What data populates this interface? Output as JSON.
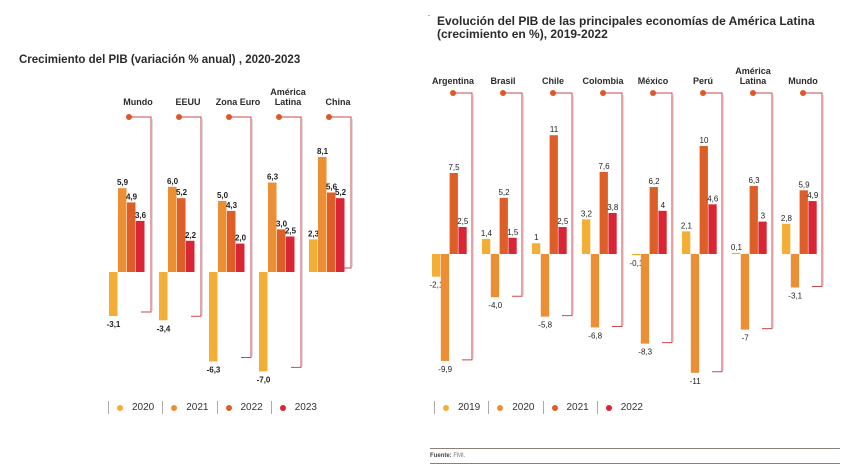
{
  "chart_data": [
    {
      "type": "bar",
      "title": "Crecimiento del PIB (variación % anual) , 2020-2023",
      "xlabel": "",
      "ylabel": "",
      "grid": false,
      "legend": "bottom",
      "categories": [
        "Mundo",
        "EEUU",
        "Zona Euro",
        "América Latina",
        "China"
      ],
      "category_lines": [
        [
          "Mundo"
        ],
        [
          "EEUU"
        ],
        [
          "Zona Euro"
        ],
        [
          "América",
          "Latina"
        ],
        [
          "China"
        ]
      ],
      "series": [
        {
          "name": "2020",
          "color": "#F3AE35",
          "values": [
            -3.1,
            -3.4,
            -6.3,
            -7.0,
            2.3
          ],
          "labels": [
            "-3,1",
            "-3,4",
            "-6,3",
            "-7,0",
            "2,3"
          ]
        },
        {
          "name": "2021",
          "color": "#EC8E33",
          "values": [
            5.9,
            6.0,
            5.0,
            6.3,
            8.1
          ],
          "labels": [
            "5,9",
            "6,0",
            "5,0",
            "6,3",
            "8,1"
          ]
        },
        {
          "name": "2022",
          "color": "#DE5E27",
          "values": [
            4.9,
            5.2,
            4.3,
            3.0,
            5.6
          ],
          "labels": [
            "4,9",
            "5,2",
            "4,3",
            "3,0",
            "5,6"
          ]
        },
        {
          "name": "2023",
          "color": "#D92534",
          "values": [
            3.6,
            2.2,
            2.0,
            2.5,
            5.2
          ],
          "labels": [
            "3,6",
            "2,2",
            "2,0",
            "2,5",
            "5,2"
          ]
        }
      ],
      "ylim": [
        -7.5,
        8.5
      ]
    },
    {
      "type": "bar",
      "title": "Evolución del PIB de las principales economías de América Latina (crecimiento en %), 2019-2022",
      "title_lines": [
        "Evolución del PIB de las principales economías de América Latina",
        "(crecimiento en %), 2019-2022"
      ],
      "xlabel": "",
      "ylabel": "",
      "grid": false,
      "legend": "bottom",
      "categories": [
        "Argentina",
        "Brasil",
        "Chile",
        "Colombia",
        "México",
        "Perú",
        "América Latina",
        "Mundo"
      ],
      "category_lines": [
        [
          "Argentina"
        ],
        [
          "Brasil"
        ],
        [
          "Chile"
        ],
        [
          "Colombia"
        ],
        [
          "México"
        ],
        [
          "Perú"
        ],
        [
          "América",
          "Latina"
        ],
        [
          "Mundo"
        ]
      ],
      "series": [
        {
          "name": "2019",
          "color": "#F3AE35",
          "values": [
            -2.1,
            1.4,
            1,
            3.2,
            -0.1,
            2.1,
            0.1,
            2.8
          ],
          "labels": [
            "-2,1",
            "1,4",
            "1",
            "3,2",
            "-0,1",
            "2,1",
            "0,1",
            "2,8"
          ]
        },
        {
          "name": "2020",
          "color": "#EC8E33",
          "values": [
            -9.9,
            -4.0,
            -5.8,
            -6.8,
            -8.3,
            -11,
            -7,
            -3.1
          ],
          "labels": [
            "-9,9",
            "-4,0",
            "-5,8",
            "-6,8",
            "-8,3",
            "-11",
            "-7",
            "-3,1"
          ]
        },
        {
          "name": "2021",
          "color": "#DE5E27",
          "values": [
            7.5,
            5.2,
            11,
            7.6,
            6.2,
            10,
            6.3,
            5.9
          ],
          "labels": [
            "7,5",
            "5,2",
            "11",
            "7,6",
            "6,2",
            "10",
            "6,3",
            "5,9"
          ]
        },
        {
          "name": "2022",
          "color": "#D92534",
          "values": [
            2.5,
            1.5,
            2.5,
            3.8,
            4,
            4.6,
            3,
            4.9
          ],
          "labels": [
            "2,5",
            "1,5",
            "2,5",
            "3,8",
            "4",
            "4,6",
            "3",
            "4,9"
          ]
        }
      ],
      "ylim": [
        -11.5,
        11.5
      ]
    }
  ],
  "source": {
    "label": "Fuente:",
    "text": "FMI."
  },
  "colors": {
    "bracket": "#C9494B",
    "marker": "#E05A25"
  }
}
